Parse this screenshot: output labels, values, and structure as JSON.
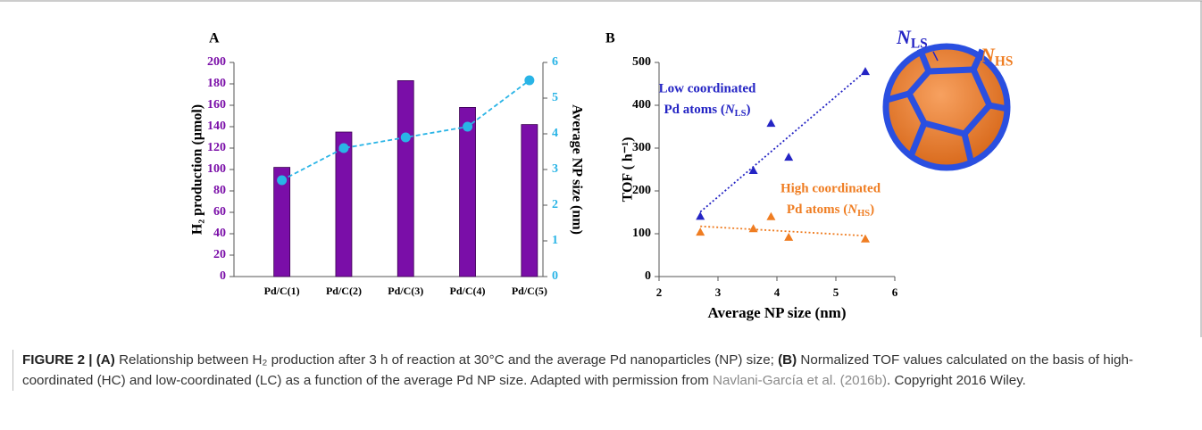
{
  "chart_data": [
    {
      "type": "bar_line",
      "title": "A",
      "categories": [
        "Pd/C(1)",
        "Pd/C(2)",
        "Pd/C(3)",
        "Pd/C(4)",
        "Pd/C(5)"
      ],
      "ylabel": "H₂ production (µmol)",
      "y2label": "Average NP size (nm)",
      "ylim": [
        0,
        200
      ],
      "yticks": [
        0,
        20,
        40,
        60,
        80,
        100,
        120,
        140,
        160,
        180,
        200
      ],
      "y2lim": [
        0,
        6
      ],
      "y2ticks": [
        0,
        1,
        2,
        3,
        4,
        5,
        6
      ],
      "series": [
        {
          "type": "bar",
          "color": "#7a0ea8",
          "values": [
            102,
            135,
            183,
            158,
            142
          ]
        },
        {
          "type": "line",
          "axis": "y2",
          "color": "#29b4e6",
          "values": [
            2.7,
            3.6,
            3.9,
            4.2,
            5.5
          ]
        }
      ]
    },
    {
      "type": "scatter",
      "title": "B",
      "xlabel": "Average NP size (nm)",
      "ylabel": "TOF ( h⁻¹)",
      "xlim": [
        2,
        6
      ],
      "xticks": [
        2,
        3,
        4,
        5,
        6
      ],
      "ylim": [
        0,
        500
      ],
      "yticks": [
        0,
        100,
        200,
        300,
        400,
        500
      ],
      "series": [
        {
          "color": "#2424c4",
          "x": [
            2.7,
            3.6,
            3.9,
            4.2,
            5.5
          ],
          "values": [
            141,
            248,
            358,
            279,
            479
          ],
          "annotation": [
            "Low coordinated",
            {
              "text": "Pd atoms (",
              "symbol": "N",
              "sub": "LS",
              "end": ")"
            }
          ]
        },
        {
          "color": "#ef7d22",
          "x": [
            2.7,
            3.6,
            3.9,
            4.2,
            5.5
          ],
          "values": [
            104,
            112,
            140,
            92,
            88
          ],
          "annotation": [
            "High coordinated",
            {
              "text": "Pd atoms (",
              "symbol": "N",
              "sub": "HS",
              "end": ")"
            }
          ]
        }
      ],
      "particle_labels": [
        {
          "symbol": "N",
          "sub": "LS"
        },
        {
          "symbol": "N",
          "sub": "HS"
        }
      ]
    }
  ],
  "caption": {
    "label": "FIGURE 2 |",
    "a": "(A)",
    "a_text": " Relationship between H₂ production after 3 h of reaction at 30°C and the average Pd nanoparticles (NP) size; ",
    "b": "(B)",
    "b_text": " Normalized TOF values calculated on the basis of high-coordinated (HC) and low-coordinated (LC) as a function of the average Pd NP size. Adapted with permission from ",
    "link": "Navlani-García et al. (2016b)",
    "end": ". Copyright 2016 Wiley."
  }
}
